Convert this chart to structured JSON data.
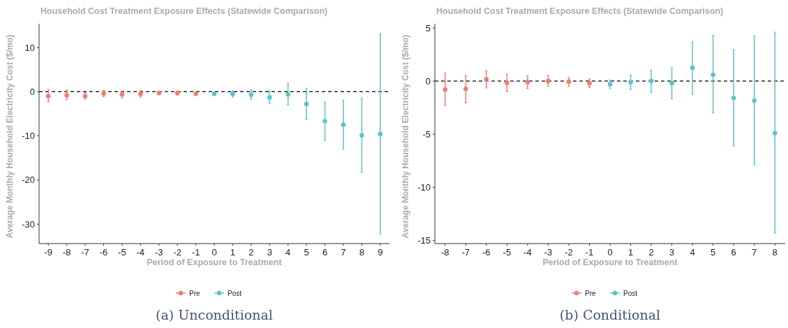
{
  "chart_data": [
    {
      "type": "scatter",
      "title": "Household Cost Treatment Exposure Effects (Statewide Comparison)",
      "xlabel": "Period of Exposure to Treatment",
      "ylabel": "Average Monthly Household Electricity Cost ($/mo)",
      "annotations": [
        "(a) Unconditional"
      ],
      "categories": [
        "-9",
        "-8",
        "-7",
        "-6",
        "-5",
        "-4",
        "-3",
        "-2",
        "-1",
        "0",
        "1",
        "2",
        "3",
        "4",
        "5",
        "6",
        "7",
        "8",
        "9"
      ],
      "ylim": [
        -34.4,
        15.4
      ],
      "yticks": [
        -30,
        -20,
        -10,
        0,
        10
      ],
      "marker": "circle",
      "legend": "bottom",
      "grid": false,
      "series": [
        {
          "name": "Pre",
          "color": "#f07c73",
          "values": [
            -1.0,
            -0.8,
            -1.0,
            -0.4,
            -0.6,
            -0.5,
            -0.3,
            -0.3,
            -0.5,
            null,
            null,
            null,
            null,
            null,
            null,
            null,
            null,
            null,
            null
          ],
          "errors": [
            [
              -2.3,
              0.5
            ],
            [
              -1.8,
              0.4
            ],
            [
              -1.7,
              -0.2
            ],
            [
              -1.1,
              0.3
            ],
            [
              -1.4,
              0.1
            ],
            [
              -1.2,
              0.3
            ],
            [
              -0.7,
              0.1
            ],
            [
              -0.8,
              0.2
            ],
            [
              -0.8,
              -0.2
            ],
            null,
            null,
            null,
            null,
            null,
            null,
            null,
            null,
            null,
            null
          ]
        },
        {
          "name": "Post",
          "color": "#5ac4c8",
          "values": [
            null,
            null,
            null,
            null,
            null,
            null,
            null,
            null,
            null,
            -0.5,
            -0.5,
            -0.7,
            -1.3,
            -0.6,
            -2.8,
            -6.7,
            -7.5,
            -9.9,
            -9.6
          ],
          "errors": [
            null,
            null,
            null,
            null,
            null,
            null,
            null,
            null,
            null,
            [
              -0.8,
              -0.1
            ],
            [
              -1.2,
              0.2
            ],
            [
              -1.7,
              0.4
            ],
            [
              -2.7,
              0.2
            ],
            [
              -3.0,
              1.9
            ],
            [
              -6.3,
              0.8
            ],
            [
              -11.0,
              -2.3
            ],
            [
              -13.0,
              -1.9
            ],
            [
              -18.3,
              -1.5
            ],
            [
              -32.2,
              13.2
            ]
          ]
        }
      ],
      "ref_lines": [
        {
          "axis": "y",
          "value": 0,
          "color": "#000000",
          "line_style": "dashed"
        }
      ]
    },
    {
      "type": "scatter",
      "title": "Household Cost Treatment Exposure Effects (Statewide Comparison)",
      "xlabel": "Period of Exposure to Treatment",
      "ylabel": "Average Monthly Household Electricity Cost ($/mo)",
      "annotations": [
        "(b) Conditional"
      ],
      "categories": [
        "-8",
        "-7",
        "-6",
        "-5",
        "-4",
        "-3",
        "-2",
        "-1",
        "0",
        "1",
        "2",
        "3",
        "4",
        "5",
        "6",
        "7",
        "8"
      ],
      "ylim": [
        -15.3,
        5.4
      ],
      "yticks": [
        -15,
        -10,
        -5,
        0,
        5
      ],
      "marker": "circle",
      "legend": "bottom",
      "grid": false,
      "series": [
        {
          "name": "Pre",
          "color": "#f07c73",
          "values": [
            -0.8,
            -0.75,
            0.15,
            -0.15,
            -0.1,
            0.0,
            -0.05,
            -0.2,
            null,
            null,
            null,
            null,
            null,
            null,
            null,
            null,
            null
          ],
          "errors": [
            [
              -2.3,
              0.75
            ],
            [
              -2.05,
              0.55
            ],
            [
              -0.65,
              0.95
            ],
            [
              -1.0,
              0.65
            ],
            [
              -0.7,
              0.5
            ],
            [
              -0.5,
              0.5
            ],
            [
              -0.5,
              0.35
            ],
            [
              -0.6,
              0.2
            ],
            null,
            null,
            null,
            null,
            null,
            null,
            null,
            null,
            null
          ]
        },
        {
          "name": "Post",
          "color": "#5ac4c8",
          "values": [
            null,
            null,
            null,
            null,
            null,
            null,
            null,
            null,
            -0.3,
            -0.1,
            0.0,
            -0.2,
            1.25,
            0.6,
            -1.6,
            -1.85,
            -4.9
          ],
          "errors": [
            null,
            null,
            null,
            null,
            null,
            null,
            null,
            null,
            [
              -0.7,
              0.1
            ],
            [
              -0.8,
              0.55
            ],
            [
              -1.1,
              1.05
            ],
            [
              -1.65,
              1.25
            ],
            [
              -1.25,
              3.7
            ],
            [
              -3.0,
              4.3
            ],
            [
              -6.1,
              2.95
            ],
            [
              -7.9,
              4.25
            ],
            [
              -14.3,
              4.6
            ]
          ]
        }
      ],
      "ref_lines": [
        {
          "axis": "y",
          "value": 0,
          "color": "#000000",
          "line_style": "dashed"
        }
      ]
    }
  ]
}
